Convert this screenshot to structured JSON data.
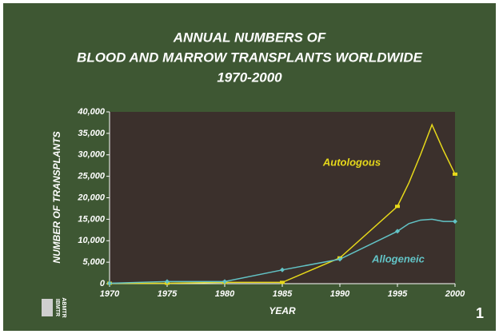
{
  "chart_data": {
    "type": "line",
    "title": [
      "ANNUAL NUMBERS OF",
      "BLOOD AND MARROW TRANSPLANTS WORLDWIDE",
      "1970-2000"
    ],
    "x_label": "YEAR",
    "y_label": "NUMBER OF TRANSPLANTS",
    "x": [
      1970,
      1975,
      1980,
      1985,
      1990,
      1995,
      1996,
      1997,
      1998,
      1999,
      2000
    ],
    "series": [
      {
        "name": "Autologous",
        "color": "#e6d81a",
        "values": [
          100,
          100,
          300,
          300,
          6000,
          18000,
          23500,
          30000,
          37000,
          31000,
          25500
        ]
      },
      {
        "name": "Allogeneic",
        "color": "#62c3c6",
        "values": [
          100,
          500,
          500,
          3200,
          5700,
          12200,
          14000,
          14800,
          15000,
          14500,
          14500
        ]
      }
    ],
    "xlim": [
      1970,
      2000
    ],
    "xticks": [
      1970,
      1975,
      1980,
      1985,
      1990,
      1995,
      2000
    ],
    "ylim": [
      0,
      40000
    ],
    "yticks": [
      0,
      {
        "value": 5000,
        "label": "5,000"
      },
      {
        "value": 10000,
        "label": "10,000"
      },
      {
        "value": 15000,
        "label": "15,000"
      },
      {
        "value": 20000,
        "label": "20,000"
      },
      {
        "value": 25000,
        "label": "25,000"
      },
      {
        "value": 30000,
        "label": "30,000"
      },
      {
        "value": 35000,
        "label": "35,000"
      },
      {
        "value": 40000,
        "label": "40,000"
      }
    ],
    "logo": [
      "IBMTR",
      "ABMTR"
    ],
    "slide_number": "1"
  }
}
